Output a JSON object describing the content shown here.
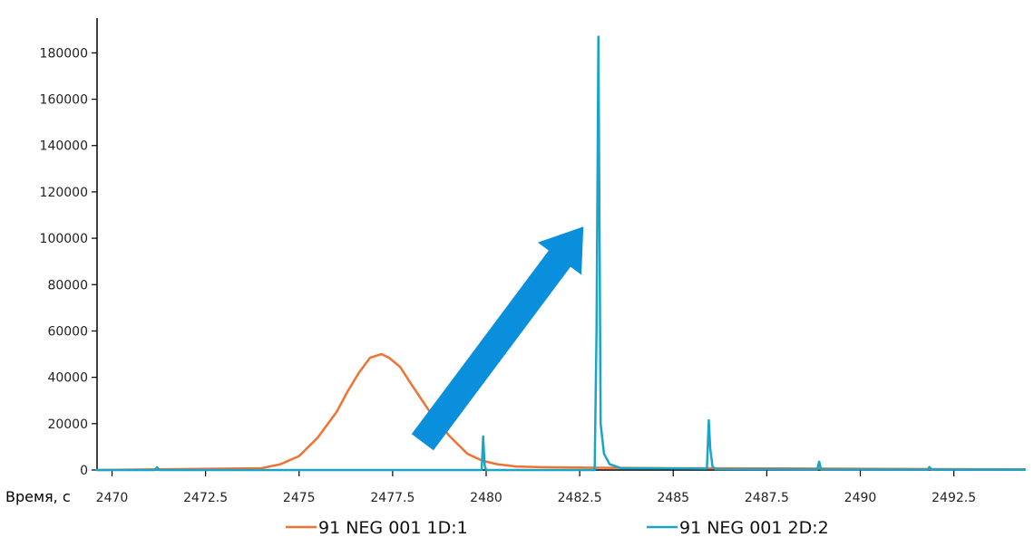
{
  "chart_data": {
    "type": "line",
    "xlabel": "Время, с",
    "ylabel": "",
    "xlim": [
      2469.6,
      2494.4
    ],
    "ylim": [
      0,
      195000
    ],
    "xticks": [
      {
        "value": 2470,
        "label": "2470"
      },
      {
        "value": 2472.5,
        "label": "2472.5"
      },
      {
        "value": 2475,
        "label": "2475"
      },
      {
        "value": 2477.5,
        "label": "2477.5"
      },
      {
        "value": 2480,
        "label": "2480"
      },
      {
        "value": 2482.5,
        "label": "2482.5"
      },
      {
        "value": 2485,
        "label": "2485"
      },
      {
        "value": 2487.5,
        "label": "2487.5"
      },
      {
        "value": 2490,
        "label": "2490"
      },
      {
        "value": 2492.5,
        "label": "2492.5"
      }
    ],
    "yticks": [
      {
        "value": 0,
        "label": "0"
      },
      {
        "value": 20000,
        "label": "20000"
      },
      {
        "value": 40000,
        "label": "40000"
      },
      {
        "value": 60000,
        "label": "60000"
      },
      {
        "value": 80000,
        "label": "80000"
      },
      {
        "value": 100000,
        "label": "100000"
      },
      {
        "value": 120000,
        "label": "120000"
      },
      {
        "value": 140000,
        "label": "140000"
      },
      {
        "value": 160000,
        "label": "160000"
      },
      {
        "value": 180000,
        "label": "180000"
      }
    ],
    "grid": false,
    "legend_position": "bottom",
    "series": [
      {
        "name": "91 NEG 001 1D:1",
        "color": "#f07232",
        "x": [
          2469.6,
          2474.0,
          2474.5,
          2475.0,
          2475.5,
          2476.0,
          2476.3,
          2476.6,
          2476.9,
          2477.2,
          2477.4,
          2477.7,
          2478.0,
          2478.5,
          2479.0,
          2479.5,
          2479.9,
          2480.3,
          2480.8,
          2481.5,
          2483.0,
          2485.0,
          2488.0,
          2492.0,
          2494.4
        ],
        "y": [
          0,
          800,
          2500,
          6000,
          14000,
          25000,
          34000,
          42000,
          48500,
          50000,
          48500,
          44500,
          37000,
          25000,
          15000,
          7000,
          4000,
          2500,
          1500,
          1200,
          1000,
          800,
          700,
          400,
          300
        ]
      },
      {
        "name": "91 NEG 001 2D:2",
        "color": "#1aa5c8",
        "x": [
          2469.6,
          2471.15,
          2471.2,
          2471.25,
          2479.88,
          2479.92,
          2479.96,
          2480.0,
          2482.9,
          2482.95,
          2483.0,
          2483.06,
          2483.15,
          2483.3,
          2483.6,
          2485.9,
          2485.95,
          2485.99,
          2486.05,
          2486.12,
          2488.85,
          2488.9,
          2488.95,
          2491.8,
          2491.85,
          2491.9,
          2494.4
        ],
        "y": [
          0,
          0,
          1200,
          0,
          0,
          14500,
          2000,
          0,
          0,
          60000,
          187000,
          20000,
          7000,
          2500,
          800,
          600,
          21500,
          9000,
          1500,
          400,
          300,
          3600,
          300,
          200,
          1300,
          200,
          200
        ]
      }
    ],
    "annotations": [
      {
        "type": "arrow",
        "color": "#0a8fdc",
        "from": [
          2478.3,
          12000
        ],
        "to": [
          2482.6,
          105000
        ]
      }
    ]
  }
}
